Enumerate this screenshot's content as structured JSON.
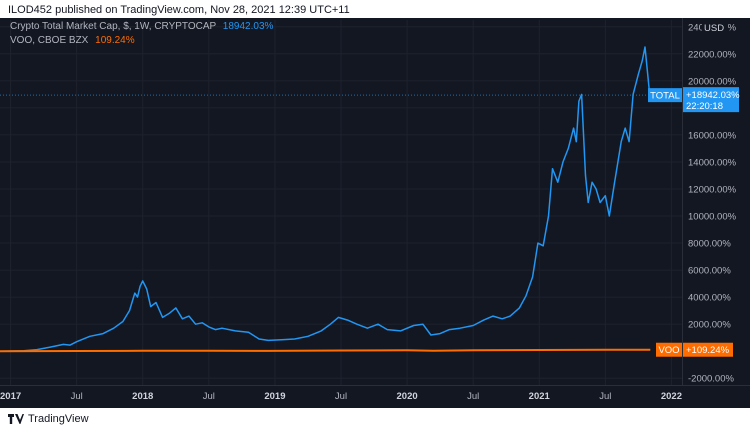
{
  "header": {
    "publisher_line": "ILOD452 published on TradingView.com, Nov 28, 2021 12:39 UTC+11"
  },
  "legend": {
    "series1_label": "Crypto Total Market Cap, $, 1W, CRYPTOCAP",
    "series1_value": "18942.03%",
    "series2_label": "VOO, CBOE BZX",
    "series2_value": "109.24%"
  },
  "footer": {
    "brand": "TradingView"
  },
  "colors": {
    "background": "#131722",
    "grid": "#1e222d",
    "total": "#2196f3",
    "voo": "#ff6d00",
    "axis_text": "#b2b5be"
  },
  "chart_data": {
    "type": "line",
    "ylabel": "USD",
    "x_range": [
      2016.92,
      2022.08
    ],
    "ylim": [
      -2500,
      24500
    ],
    "y_ticks": [
      {
        "value": -2000,
        "label": "-2000.00%"
      },
      {
        "value": 2000,
        "label": "2000.00%"
      },
      {
        "value": 4000,
        "label": "4000.00%"
      },
      {
        "value": 6000,
        "label": "6000.00%"
      },
      {
        "value": 8000,
        "label": "8000.00%"
      },
      {
        "value": 10000,
        "label": "10000.00%"
      },
      {
        "value": 12000,
        "label": "12000.00%"
      },
      {
        "value": 14000,
        "label": "14000.00%"
      },
      {
        "value": 16000,
        "label": "16000.00%"
      },
      {
        "value": 18000,
        "label": "18000.00%"
      },
      {
        "value": 20000,
        "label": "20000.00%"
      },
      {
        "value": 22000,
        "label": "22000.00%"
      },
      {
        "value": 24000,
        "label": "24000.00%"
      }
    ],
    "x_ticks": [
      {
        "value": 2017.0,
        "label": "2017",
        "bold": true
      },
      {
        "value": 2017.5,
        "label": "Jul",
        "bold": false
      },
      {
        "value": 2018.0,
        "label": "2018",
        "bold": true
      },
      {
        "value": 2018.5,
        "label": "Jul",
        "bold": false
      },
      {
        "value": 2019.0,
        "label": "2019",
        "bold": true
      },
      {
        "value": 2019.5,
        "label": "Jul",
        "bold": false
      },
      {
        "value": 2020.0,
        "label": "2020",
        "bold": true
      },
      {
        "value": 2020.5,
        "label": "Jul",
        "bold": false
      },
      {
        "value": 2021.0,
        "label": "2021",
        "bold": true
      },
      {
        "value": 2021.5,
        "label": "Jul",
        "bold": false
      },
      {
        "value": 2022.0,
        "label": "2022",
        "bold": true
      }
    ],
    "series": [
      {
        "name": "TOTAL",
        "color": "#2196f3",
        "points": [
          [
            2016.92,
            0
          ],
          [
            2017.1,
            30
          ],
          [
            2017.2,
            120
          ],
          [
            2017.3,
            300
          ],
          [
            2017.4,
            500
          ],
          [
            2017.45,
            450
          ],
          [
            2017.5,
            700
          ],
          [
            2017.6,
            1100
          ],
          [
            2017.7,
            1300
          ],
          [
            2017.78,
            1700
          ],
          [
            2017.85,
            2200
          ],
          [
            2017.9,
            3000
          ],
          [
            2017.94,
            4300
          ],
          [
            2017.96,
            4000
          ],
          [
            2017.98,
            4800
          ],
          [
            2018.0,
            5200
          ],
          [
            2018.03,
            4600
          ],
          [
            2018.06,
            3300
          ],
          [
            2018.1,
            3600
          ],
          [
            2018.15,
            2500
          ],
          [
            2018.2,
            2800
          ],
          [
            2018.25,
            3200
          ],
          [
            2018.3,
            2400
          ],
          [
            2018.35,
            2600
          ],
          [
            2018.4,
            2000
          ],
          [
            2018.45,
            2100
          ],
          [
            2018.5,
            1800
          ],
          [
            2018.55,
            1600
          ],
          [
            2018.6,
            1700
          ],
          [
            2018.7,
            1500
          ],
          [
            2018.8,
            1400
          ],
          [
            2018.88,
            900
          ],
          [
            2018.95,
            800
          ],
          [
            2019.05,
            850
          ],
          [
            2019.15,
            900
          ],
          [
            2019.25,
            1100
          ],
          [
            2019.35,
            1500
          ],
          [
            2019.42,
            2000
          ],
          [
            2019.48,
            2500
          ],
          [
            2019.55,
            2300
          ],
          [
            2019.62,
            2000
          ],
          [
            2019.7,
            1700
          ],
          [
            2019.78,
            2000
          ],
          [
            2019.85,
            1600
          ],
          [
            2019.95,
            1500
          ],
          [
            2020.05,
            1900
          ],
          [
            2020.12,
            2000
          ],
          [
            2020.18,
            1200
          ],
          [
            2020.25,
            1300
          ],
          [
            2020.32,
            1600
          ],
          [
            2020.4,
            1700
          ],
          [
            2020.5,
            1900
          ],
          [
            2020.58,
            2300
          ],
          [
            2020.65,
            2600
          ],
          [
            2020.72,
            2400
          ],
          [
            2020.78,
            2600
          ],
          [
            2020.85,
            3200
          ],
          [
            2020.9,
            4100
          ],
          [
            2020.95,
            5500
          ],
          [
            2020.99,
            8000
          ],
          [
            2021.03,
            7800
          ],
          [
            2021.07,
            10000
          ],
          [
            2021.1,
            13500
          ],
          [
            2021.14,
            12500
          ],
          [
            2021.18,
            14000
          ],
          [
            2021.22,
            15000
          ],
          [
            2021.26,
            16500
          ],
          [
            2021.28,
            15500
          ],
          [
            2021.3,
            18500
          ],
          [
            2021.32,
            19000
          ],
          [
            2021.35,
            13000
          ],
          [
            2021.37,
            11000
          ],
          [
            2021.4,
            12500
          ],
          [
            2021.43,
            12000
          ],
          [
            2021.46,
            11000
          ],
          [
            2021.5,
            11500
          ],
          [
            2021.53,
            10000
          ],
          [
            2021.57,
            12500
          ],
          [
            2021.62,
            15500
          ],
          [
            2021.65,
            16500
          ],
          [
            2021.68,
            15500
          ],
          [
            2021.71,
            19000
          ],
          [
            2021.75,
            20500
          ],
          [
            2021.78,
            21500
          ],
          [
            2021.8,
            22500
          ],
          [
            2021.83,
            19500
          ],
          [
            2021.84,
            18942
          ]
        ]
      },
      {
        "name": "VOO",
        "color": "#ff6d00",
        "points": [
          [
            2016.92,
            0
          ],
          [
            2017.5,
            15
          ],
          [
            2018.0,
            30
          ],
          [
            2018.5,
            30
          ],
          [
            2018.95,
            20
          ],
          [
            2019.5,
            50
          ],
          [
            2020.0,
            70
          ],
          [
            2020.2,
            40
          ],
          [
            2020.5,
            70
          ],
          [
            2021.0,
            90
          ],
          [
            2021.5,
            105
          ],
          [
            2021.84,
            109
          ]
        ]
      }
    ],
    "last_labels": {
      "total_tag": "TOTAL",
      "total_value": "+18942.03%",
      "total_time": "22:20:18",
      "voo_tag": "VOO",
      "voo_value": "+109.24%"
    }
  }
}
